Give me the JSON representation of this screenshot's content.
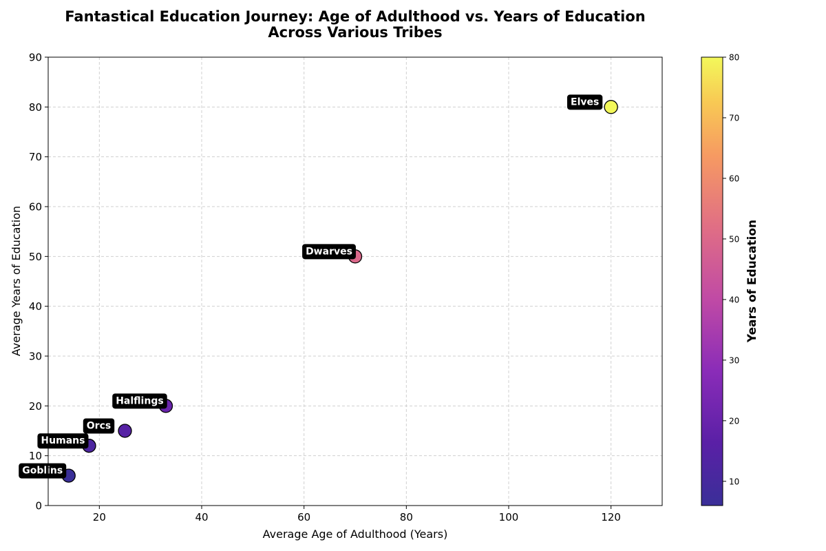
{
  "chart_data": {
    "type": "scatter",
    "title_line1": "Fantastical Education Journey: Age of Adulthood vs. Years of Education",
    "title_line2": "Across Various Tribes",
    "xlabel": "Average Age of Adulthood (Years)",
    "ylabel": "Average Years of Education",
    "xlim": [
      10,
      130
    ],
    "ylim": [
      0,
      90
    ],
    "xticks": [
      20,
      40,
      60,
      80,
      100,
      120
    ],
    "yticks": [
      0,
      10,
      20,
      30,
      40,
      50,
      60,
      70,
      80,
      90
    ],
    "grid": true,
    "colormap": "plasma",
    "colorbar": {
      "label": "Years of Education",
      "range": [
        6,
        80
      ],
      "ticks": [
        10,
        20,
        30,
        40,
        50,
        60,
        70,
        80
      ]
    },
    "points": [
      {
        "name": "Goblins",
        "x": 14,
        "y": 6
      },
      {
        "name": "Humans",
        "x": 18,
        "y": 12
      },
      {
        "name": "Orcs",
        "x": 25,
        "y": 15
      },
      {
        "name": "Halflings",
        "x": 33,
        "y": 20
      },
      {
        "name": "Dwarves",
        "x": 70,
        "y": 50
      },
      {
        "name": "Elves",
        "x": 120,
        "y": 80
      }
    ]
  }
}
